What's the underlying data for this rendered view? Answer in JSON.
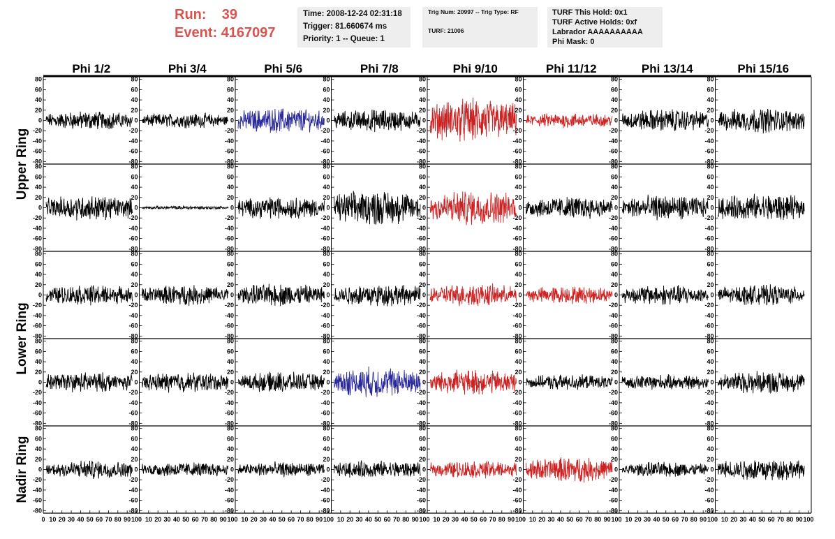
{
  "header": {
    "run_label": "Run:",
    "run_value": "39",
    "event_label": "Event:",
    "event_value": "4167097"
  },
  "info_time": {
    "time": "Time: 2008-12-24 02:31:18",
    "trigger": "Trigger: 81.660674 ms",
    "priority": "Priority: 1 -- Queue: 1"
  },
  "info_trig": {
    "trig": "Trig Num: 20997 -- Trig Type: RF",
    "turf": "TURF: 21006"
  },
  "info_turf": {
    "hold": "TURF This Hold: 0x1",
    "active": "TURF Active Holds: 0xf",
    "labrador": "Labrador AAAAAAAAAA",
    "phimask": "Phi Mask: 0"
  },
  "colors": {
    "normal": "#000000",
    "red": "#cc2222",
    "blue": "#2a2a9a",
    "accent": "#d9534f"
  },
  "chart_data": {
    "type": "line",
    "columns": [
      "Phi 1/2",
      "Phi 3/4",
      "Phi 5/6",
      "Phi 7/8",
      "Phi 9/10",
      "Phi 11/12",
      "Phi 13/14",
      "Phi 15/16"
    ],
    "row_groups": [
      "Upper Ring",
      "Lower Ring",
      "Nadir Ring"
    ],
    "panel_rows": 5,
    "ylim": [
      -85,
      85
    ],
    "yticks": [
      "80",
      "60",
      "40",
      "20",
      "0",
      "-20",
      "-40",
      "-60",
      "-80"
    ],
    "ytick_values": [
      80,
      60,
      40,
      20,
      0,
      -20,
      -40,
      -60,
      -80
    ],
    "xlim": [
      0,
      100
    ],
    "xtick_labels": [
      "0",
      "10",
      "20",
      "30",
      "40",
      "50",
      "60",
      "70",
      "80",
      "90",
      "100"
    ],
    "xtick_values": [
      0,
      10,
      20,
      30,
      40,
      50,
      60,
      70,
      80,
      90,
      100
    ],
    "samples_per_trace": 260,
    "trace_colors": [
      [
        "normal",
        "normal",
        "blue",
        "normal",
        "red",
        "red",
        "normal",
        "normal"
      ],
      [
        "normal",
        "normal",
        "normal",
        "normal",
        "red",
        "normal",
        "normal",
        "normal"
      ],
      [
        "normal",
        "normal",
        "normal",
        "normal",
        "red",
        "red",
        "normal",
        "normal"
      ],
      [
        "normal",
        "normal",
        "normal",
        "blue",
        "red",
        "normal",
        "normal",
        "normal"
      ],
      [
        "normal",
        "normal",
        "normal",
        "normal",
        "red",
        "red",
        "normal",
        "normal"
      ]
    ],
    "trace_amplitudes": [
      [
        15,
        12,
        20,
        18,
        35,
        12,
        18,
        20
      ],
      [
        20,
        3,
        18,
        28,
        28,
        18,
        20,
        22
      ],
      [
        16,
        16,
        18,
        18,
        18,
        14,
        16,
        16
      ],
      [
        16,
        16,
        16,
        24,
        20,
        12,
        12,
        18
      ],
      [
        15,
        12,
        12,
        14,
        14,
        20,
        12,
        18
      ]
    ]
  }
}
